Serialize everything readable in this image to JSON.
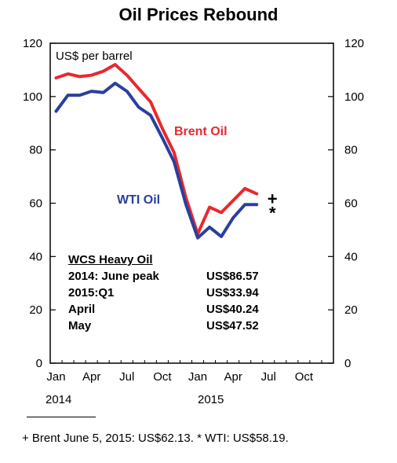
{
  "chart_data": {
    "type": "line",
    "title": "Oil Prices Rebound",
    "ylabel": "US$ per barrel",
    "ylim": [
      0,
      120
    ],
    "yticks": [
      0,
      20,
      40,
      60,
      80,
      100,
      120
    ],
    "x_tick_labels": [
      "Jan",
      "Apr",
      "Jul",
      "Oct",
      "Jan",
      "Apr",
      "Jul",
      "Oct"
    ],
    "year_labels": [
      "2014",
      "2015"
    ],
    "x_range_months": "Jan 2014 – Dec 2015",
    "grid": false,
    "series": [
      {
        "name": "Brent Oil",
        "color": "#e8282f",
        "x": [
          "2014-01",
          "2014-02",
          "2014-03",
          "2014-04",
          "2014-05",
          "2014-06",
          "2014-07",
          "2014-08",
          "2014-09",
          "2014-10",
          "2014-11",
          "2014-12",
          "2015-01",
          "2015-02",
          "2015-03",
          "2015-04",
          "2015-05",
          "2015-06"
        ],
        "values": [
          107,
          108.5,
          107.5,
          108,
          109.5,
          112,
          108,
          103,
          98,
          88,
          79,
          62,
          48.5,
          58.5,
          56.5,
          61,
          65.5,
          63.5
        ]
      },
      {
        "name": "WTI Oil",
        "color": "#2a3f9d",
        "x": [
          "2014-01",
          "2014-02",
          "2014-03",
          "2014-04",
          "2014-05",
          "2014-06",
          "2014-07",
          "2014-08",
          "2014-09",
          "2014-10",
          "2014-11",
          "2014-12",
          "2015-01",
          "2015-02",
          "2015-03",
          "2015-04",
          "2015-05",
          "2015-06"
        ],
        "values": [
          94.5,
          100.5,
          100.5,
          102,
          101.5,
          105,
          102,
          96,
          93,
          84.5,
          75.5,
          59.5,
          47,
          51,
          47.5,
          54.5,
          59.5,
          59.5
        ]
      }
    ],
    "markers": [
      {
        "symbol": "+",
        "series": "Brent Oil",
        "x": "2015-06",
        "y": 62.13
      },
      {
        "symbol": "*",
        "series": "WTI Oil",
        "x": "2015-06",
        "y": 58.19
      }
    ],
    "wcs_table": {
      "title": "WCS Heavy Oil",
      "rows": [
        {
          "period": "2014: June peak",
          "value": "US$86.57"
        },
        {
          "period": "2015:Q1",
          "value": "US$33.94"
        },
        {
          "period": "April",
          "value": "US$40.24"
        },
        {
          "period": "May",
          "value": "US$47.52"
        }
      ]
    },
    "footnote": "+ Brent June 5, 2015: US$62.13. * WTI: US$58.19."
  }
}
